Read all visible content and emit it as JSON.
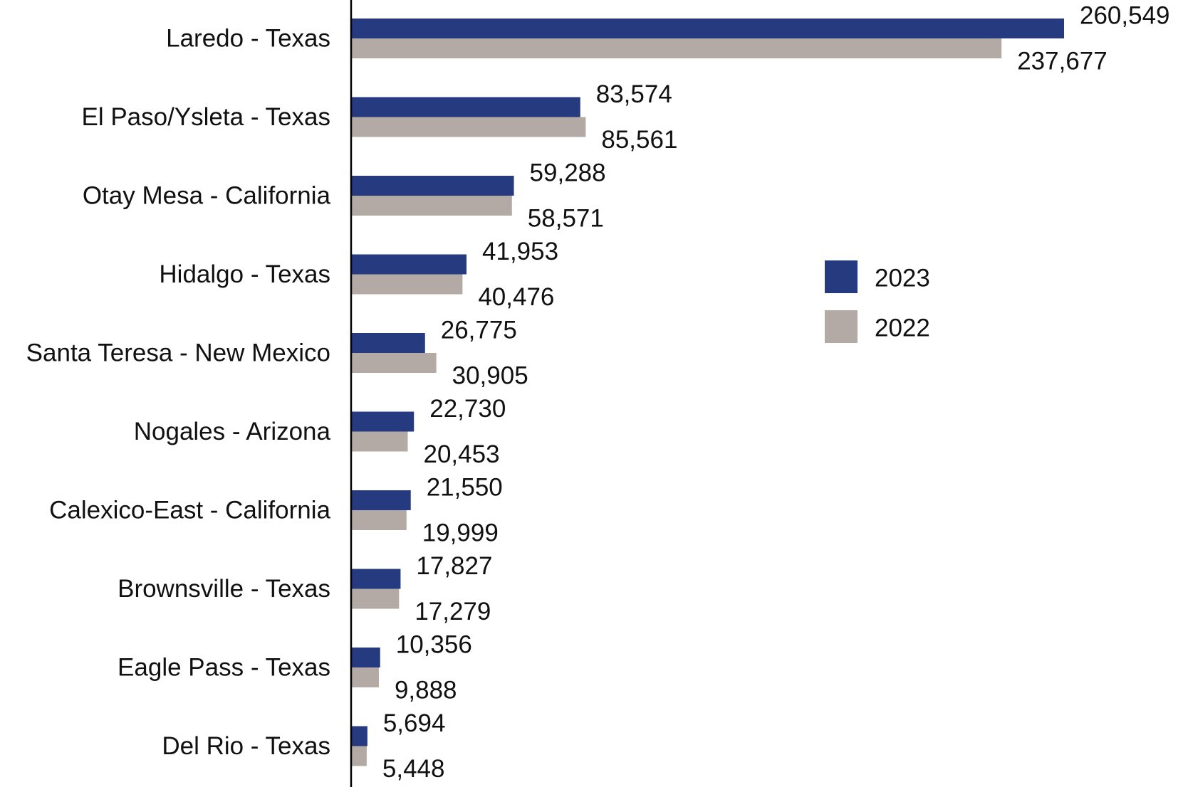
{
  "chart_data": {
    "type": "bar",
    "orientation": "horizontal",
    "categories": [
      "Laredo - Texas",
      "El Paso/Ysleta - Texas",
      "Otay Mesa - California",
      "Hidalgo - Texas",
      "Santa Teresa - New Mexico",
      "Nogales - Arizona",
      "Calexico-East - California",
      "Brownsville - Texas",
      "Eagle Pass - Texas",
      "Del Rio - Texas"
    ],
    "series": [
      {
        "name": "2023",
        "color": "#263a80",
        "values": [
          260549,
          83574,
          59288,
          41953,
          26775,
          22730,
          21550,
          17827,
          10356,
          5694
        ],
        "labels": [
          "260,549",
          "83,574",
          "59,288",
          "41,953",
          "26,775",
          "22,730",
          "21,550",
          "17,827",
          "10,356",
          "5,694"
        ]
      },
      {
        "name": "2022",
        "color": "#b3a9a5",
        "values": [
          237677,
          85561,
          58571,
          40476,
          30905,
          20453,
          19999,
          17279,
          9888,
          5448
        ],
        "labels": [
          "237,677",
          "85,561",
          "58,571",
          "40,476",
          "30,905",
          "20,453",
          "19,999",
          "17,279",
          "9,888",
          "5,448"
        ]
      }
    ],
    "title": "",
    "xlabel": "",
    "ylabel": "",
    "xlim": [
      0,
      260549
    ],
    "grid": false,
    "legend_position": "right"
  }
}
